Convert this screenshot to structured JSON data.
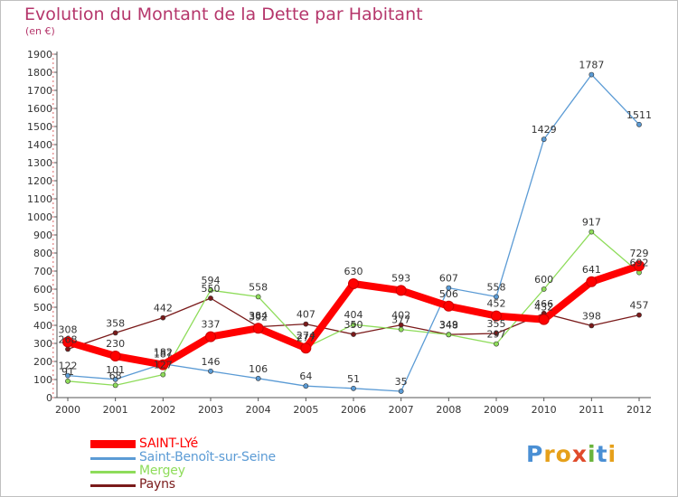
{
  "title": "Evolution du Montant de la Dette par Habitant",
  "subtitle": "(en €)",
  "brand": {
    "letters": [
      "P",
      "r",
      "o",
      "x",
      "i",
      "t",
      "i"
    ],
    "colors": [
      "#4a8fd4",
      "#e6a01a",
      "#e6a01a",
      "#e04a2a",
      "#6ab43c",
      "#4a8fd4",
      "#e6a01a"
    ]
  },
  "chart_data": {
    "type": "line",
    "title": "Evolution du Montant de la Dette par Habitant",
    "ylabel": "(en €)",
    "xlabel": "",
    "x": [
      "2000",
      "2001",
      "2002",
      "2003",
      "2004",
      "2005",
      "2006",
      "2007",
      "2008",
      "2009",
      "2010",
      "2011",
      "2012"
    ],
    "ylim": [
      0,
      1900
    ],
    "yticks": [
      0,
      100,
      200,
      300,
      400,
      500,
      600,
      700,
      800,
      900,
      1000,
      1100,
      1200,
      1300,
      1400,
      1500,
      1600,
      1700,
      1800,
      1900
    ],
    "grid": false,
    "legend_position": "bottom-left",
    "series": [
      {
        "name": "Payns",
        "color": "#7a1a1a",
        "stroke": 1.3,
        "marker": 2.6,
        "labels_above": true,
        "values": [
          268,
          358,
          442,
          550,
          392,
          407,
          350,
          402,
          349,
          355,
          466,
          398,
          457
        ],
        "labels": [
          "268",
          "358",
          "442",
          "550",
          "392",
          "407",
          "350",
          "402",
          "349",
          "355",
          "466",
          "398",
          "457"
        ]
      },
      {
        "name": "Mergey",
        "color": "#8edc5a",
        "stroke": 1.3,
        "marker": 2.6,
        "labels_above": true,
        "values": [
          91,
          68,
          127,
          594,
          558,
          277,
          404,
          377,
          348,
          297,
          600,
          917,
          692
        ],
        "labels": [
          "91",
          "68",
          "127",
          "594",
          "558",
          "277",
          "404",
          "377",
          "348",
          "297",
          "600",
          "917",
          "692"
        ]
      },
      {
        "name": "Saint-Benoît-sur-Seine",
        "color": "#5b9bd5",
        "stroke": 1.3,
        "marker": 2.6,
        "labels_above": true,
        "values": [
          122,
          101,
          187,
          146,
          106,
          64,
          51,
          35,
          607,
          558,
          1429,
          1787,
          1511
        ],
        "labels": [
          "122",
          "101",
          "187",
          "146",
          "106",
          "64",
          "51",
          "35",
          "607",
          "558",
          "1429",
          "1787",
          "1511"
        ]
      },
      {
        "name": "SAINT-LYé",
        "color": "#ff0000",
        "stroke": 8,
        "marker": 5.5,
        "labels_above": true,
        "values": [
          308,
          230,
          182,
          337,
          384,
          274,
          630,
          593,
          506,
          452,
          432,
          641,
          729
        ],
        "labels": [
          "308",
          "230",
          "182",
          "337",
          "384",
          "274",
          "630",
          "593",
          "506",
          "452",
          "432",
          "641",
          "729"
        ]
      }
    ]
  },
  "legend": [
    {
      "name": "SAINT-LYé",
      "color": "#ff0000",
      "text_color": "#ff0000",
      "thickness": "bold"
    },
    {
      "name": "Saint-Benoît-sur-Seine",
      "color": "#5b9bd5",
      "text_color": "#5b9bd5",
      "thickness": "thin"
    },
    {
      "name": "Mergey",
      "color": "#8edc5a",
      "text_color": "#8edc5a",
      "thickness": "thin"
    },
    {
      "name": "Payns",
      "color": "#7a1a1a",
      "text_color": "#7a1a1a",
      "thickness": "thin"
    }
  ]
}
